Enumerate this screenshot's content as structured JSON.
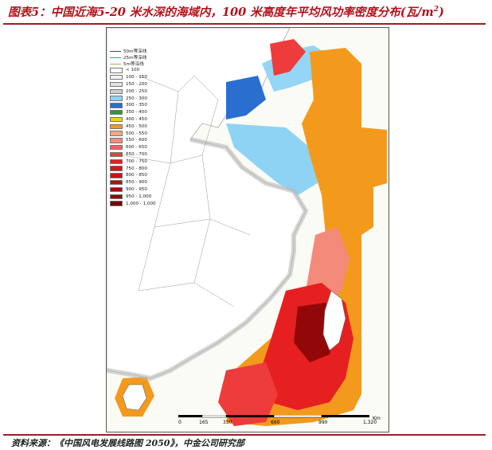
{
  "title": {
    "prefix": "图表5：中国近海5-20 米水深的海域内，100 米高度年平均风功率密度分布(瓦/m",
    "exp": "2",
    "suffix": ")"
  },
  "source": "资料来源：《中国风电发展线路图 2050》，中金公司研究部",
  "legend": {
    "lines": [
      {
        "label": "50m等深线",
        "color": "#444466"
      },
      {
        "label": "25m等深线",
        "color": "#33aa88"
      },
      {
        "label": "5m等深线",
        "color": "#b8a455"
      }
    ],
    "classes": [
      {
        "label": "< 100",
        "color": "#ffffff"
      },
      {
        "label": "100 - 150",
        "color": "#f2f2f2"
      },
      {
        "label": "150 - 200",
        "color": "#e3e3e3"
      },
      {
        "label": "200 - 250",
        "color": "#cfcfcf"
      },
      {
        "label": "250 - 300",
        "color": "#8fd3f4"
      },
      {
        "label": "300 - 350",
        "color": "#2a6fd0"
      },
      {
        "label": "350 - 400",
        "color": "#2e9a3a"
      },
      {
        "label": "400 - 450",
        "color": "#f0d20a"
      },
      {
        "label": "450 - 500",
        "color": "#f39a1c"
      },
      {
        "label": "500 - 550",
        "color": "#f6a87e"
      },
      {
        "label": "550 - 600",
        "color": "#f48a7a"
      },
      {
        "label": "600 - 650",
        "color": "#f06060"
      },
      {
        "label": "650 - 700",
        "color": "#ee3b3b"
      },
      {
        "label": "700 - 750",
        "color": "#e62020"
      },
      {
        "label": "750 - 800",
        "color": "#d81818"
      },
      {
        "label": "800 - 850",
        "color": "#c81414"
      },
      {
        "label": "850 - 900",
        "color": "#b81010"
      },
      {
        "label": "900 - 950",
        "color": "#a60c0c"
      },
      {
        "label": "950 - 1,000",
        "color": "#920808"
      },
      {
        "label": "1,000 - 1,000",
        "color": "#7a0404"
      }
    ]
  },
  "scale": {
    "ticks": [
      "0",
      "165",
      "330",
      "660",
      "990",
      "1,320"
    ],
    "unit": "Km"
  },
  "colors": {
    "land": "#ffffff",
    "sea": "#fbfbf6",
    "title": "#b5121b",
    "rule": "#a01e23"
  }
}
